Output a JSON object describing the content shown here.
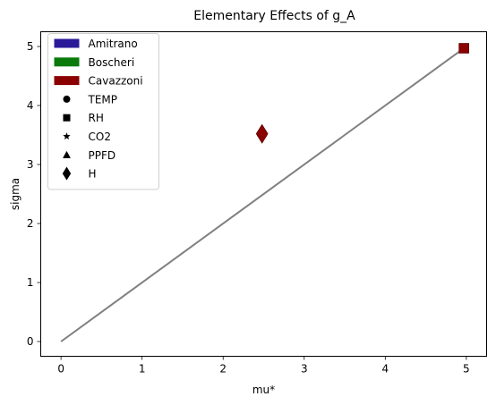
{
  "chart_data": {
    "type": "scatter",
    "title": "Elementary Effects of g_A",
    "xlabel": "mu*",
    "ylabel": "sigma",
    "xlim": [
      -0.25,
      5.25
    ],
    "ylim": [
      -0.25,
      5.25
    ],
    "xticks": [
      0,
      1,
      2,
      3,
      4,
      5
    ],
    "yticks": [
      0,
      1,
      2,
      3,
      4,
      5
    ],
    "grid": false,
    "legend_position": "top-left",
    "reference_line": {
      "x": [
        0,
        5
      ],
      "y": [
        0,
        5
      ],
      "color": "#808080"
    },
    "series": [
      {
        "name": "Amitrano",
        "color": "#2a1a9a",
        "points": []
      },
      {
        "name": "Boscheri",
        "color": "#0a7a0a",
        "points": []
      },
      {
        "name": "Cavazzoni",
        "color": "#8b0000",
        "points": [
          {
            "x": 2.48,
            "y": 3.52,
            "marker": "TEMP"
          },
          {
            "x": 2.48,
            "y": 3.52,
            "marker": "H"
          },
          {
            "x": 4.97,
            "y": 4.97,
            "marker": "RH"
          }
        ]
      }
    ],
    "markers": [
      {
        "name": "TEMP",
        "shape": "circle"
      },
      {
        "name": "RH",
        "shape": "square"
      },
      {
        "name": "CO2",
        "shape": "star"
      },
      {
        "name": "PPFD",
        "shape": "triangle"
      },
      {
        "name": "H",
        "shape": "diamond"
      }
    ]
  }
}
